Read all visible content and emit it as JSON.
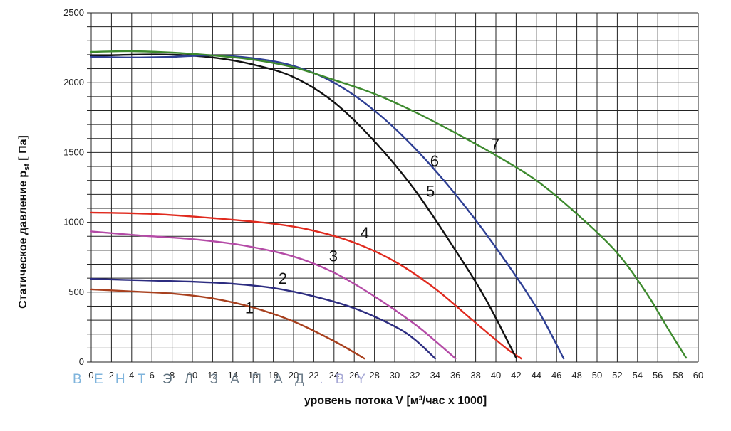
{
  "chart_data": {
    "type": "line",
    "title": "",
    "xlabel": "уровень потока  V [м³/час x 1000]",
    "ylabel_main": "Статическое давление  p",
    "ylabel_sub": "sf",
    "ylabel_unit": " [ Па]",
    "xlim": [
      0,
      60
    ],
    "ylim": [
      0,
      2500
    ],
    "x_ticks": [
      0,
      2,
      4,
      6,
      8,
      10,
      12,
      14,
      16,
      18,
      20,
      22,
      24,
      26,
      28,
      30,
      32,
      34,
      36,
      38,
      40,
      42,
      44,
      46,
      48,
      50,
      52,
      54,
      56,
      58,
      60
    ],
    "y_ticks": [
      0,
      500,
      1000,
      1500,
      2000,
      2500
    ],
    "grid": true,
    "legend": "none",
    "series": [
      {
        "name": "1",
        "color": "#a8401e",
        "label_at": [
          15.2,
          350
        ],
        "points": [
          [
            0,
            520
          ],
          [
            4,
            505
          ],
          [
            8,
            490
          ],
          [
            12,
            455
          ],
          [
            16,
            390
          ],
          [
            20,
            290
          ],
          [
            24,
            150
          ],
          [
            27,
            25
          ]
        ]
      },
      {
        "name": "2",
        "color": "#2c2c80",
        "label_at": [
          18.5,
          560
        ],
        "points": [
          [
            0,
            595
          ],
          [
            5,
            585
          ],
          [
            10,
            575
          ],
          [
            14,
            560
          ],
          [
            18,
            530
          ],
          [
            22,
            470
          ],
          [
            26,
            385
          ],
          [
            30,
            255
          ],
          [
            32,
            160
          ],
          [
            34,
            25
          ]
        ]
      },
      {
        "name": "3",
        "color": "#b44aa6",
        "label_at": [
          23.5,
          720
        ],
        "points": [
          [
            0,
            935
          ],
          [
            5,
            905
          ],
          [
            10,
            880
          ],
          [
            15,
            835
          ],
          [
            20,
            755
          ],
          [
            24,
            640
          ],
          [
            28,
            470
          ],
          [
            32,
            270
          ],
          [
            34.5,
            120
          ],
          [
            36,
            25
          ]
        ]
      },
      {
        "name": "4",
        "color": "#e02a1e",
        "label_at": [
          26.6,
          885
        ],
        "points": [
          [
            0,
            1070
          ],
          [
            6,
            1060
          ],
          [
            12,
            1030
          ],
          [
            18,
            990
          ],
          [
            22,
            940
          ],
          [
            26,
            855
          ],
          [
            30,
            720
          ],
          [
            34,
            525
          ],
          [
            38,
            280
          ],
          [
            41,
            100
          ],
          [
            42.5,
            25
          ]
        ]
      },
      {
        "name": "5",
        "color": "#111111",
        "label_at": [
          33.1,
          1185
        ],
        "points": [
          [
            0,
            2190
          ],
          [
            4,
            2200
          ],
          [
            8,
            2200
          ],
          [
            12,
            2180
          ],
          [
            16,
            2130
          ],
          [
            20,
            2040
          ],
          [
            24,
            1860
          ],
          [
            28,
            1580
          ],
          [
            32,
            1230
          ],
          [
            36,
            800
          ],
          [
            39,
            450
          ],
          [
            42,
            30
          ]
        ]
      },
      {
        "name": "6",
        "color": "#2e3f94",
        "label_at": [
          33.5,
          1400
        ],
        "points": [
          [
            0,
            2185
          ],
          [
            4,
            2180
          ],
          [
            8,
            2185
          ],
          [
            12,
            2195
          ],
          [
            16,
            2175
          ],
          [
            20,
            2120
          ],
          [
            24,
            2000
          ],
          [
            28,
            1800
          ],
          [
            32,
            1530
          ],
          [
            36,
            1200
          ],
          [
            40,
            820
          ],
          [
            44,
            390
          ],
          [
            46.7,
            25
          ]
        ]
      },
      {
        "name": "7",
        "color": "#3d8a2e",
        "label_at": [
          39.5,
          1520
        ],
        "points": [
          [
            0,
            2220
          ],
          [
            4,
            2225
          ],
          [
            8,
            2215
          ],
          [
            12,
            2195
          ],
          [
            16,
            2165
          ],
          [
            20,
            2110
          ],
          [
            24,
            2020
          ],
          [
            28,
            1920
          ],
          [
            32,
            1790
          ],
          [
            36,
            1640
          ],
          [
            40,
            1480
          ],
          [
            44,
            1300
          ],
          [
            48,
            1060
          ],
          [
            52,
            780
          ],
          [
            55,
            480
          ],
          [
            57,
            240
          ],
          [
            58.8,
            30
          ]
        ]
      }
    ]
  },
  "watermark": {
    "part1": "В Е Н Т",
    "part2": "Э Л",
    "part3": "З А П А Д",
    "part4": ". B Y"
  }
}
